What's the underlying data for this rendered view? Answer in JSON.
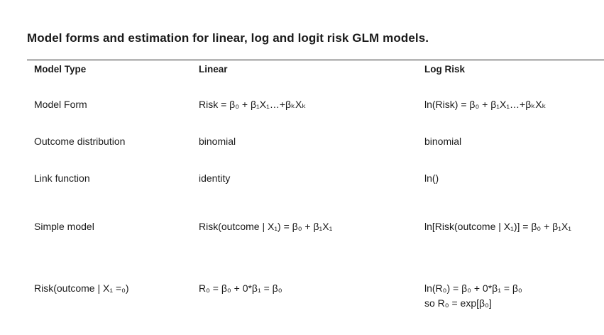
{
  "title": "Model forms and estimation for linear, log and logit risk GLM models.",
  "table": {
    "headers": [
      "Model Type",
      "Linear",
      "Log Risk"
    ],
    "rows": [
      {
        "label": "Model Form",
        "linear": "Risk = β₀ + β₁X₁…+βₖXₖ",
        "log_risk": [
          "ln(Risk) = β₀ + β₁X₁…+βₖXₖ"
        ]
      },
      {
        "label": "Outcome distribution",
        "linear": "binomial",
        "log_risk": [
          "binomial"
        ]
      },
      {
        "label": "Link function",
        "linear": "identity",
        "log_risk": [
          "ln()"
        ]
      },
      {
        "label": "Simple model",
        "linear": "Risk(outcome | X₁) = β₀ + β₁X₁",
        "log_risk": [
          "ln[Risk(outcome | X₁)] = β₀ + β₁X₁"
        ]
      },
      {
        "label": "Risk(outcome | X₁ =₀)",
        "linear": "R₀ = β₀ + 0*β₁ = β₀",
        "log_risk": [
          "ln(R₀) = β₀ + 0*β₁ = β₀",
          "so R₀ = exp[β₀]"
        ]
      }
    ]
  }
}
